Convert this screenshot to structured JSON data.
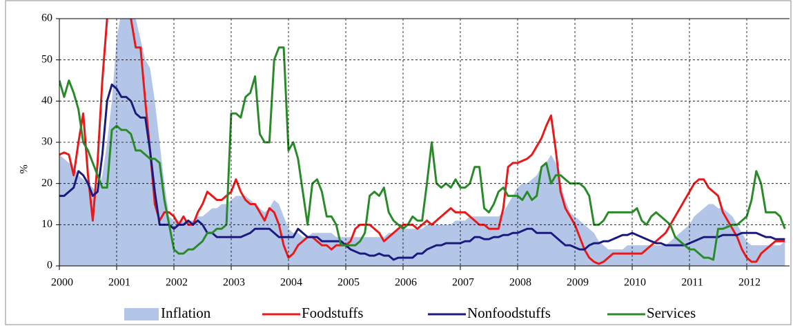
{
  "chart_data": {
    "type": "line",
    "ylabel": "%",
    "ylim": [
      0,
      60
    ],
    "yticks": [
      0,
      10,
      20,
      30,
      40,
      50,
      60
    ],
    "grid": true,
    "legend": "bottom",
    "categories": [
      "2000",
      null,
      null,
      null,
      null,
      null,
      null,
      null,
      null,
      null,
      null,
      null,
      "2001",
      null,
      null,
      null,
      null,
      null,
      null,
      null,
      null,
      null,
      null,
      null,
      "2002",
      null,
      null,
      null,
      null,
      null,
      null,
      null,
      null,
      null,
      null,
      null,
      "2003",
      null,
      null,
      null,
      null,
      null,
      null,
      null,
      null,
      null,
      null,
      null,
      "2004",
      null,
      null,
      null,
      null,
      null,
      null,
      null,
      null,
      null,
      null,
      null,
      "2005",
      null,
      null,
      null,
      null,
      null,
      null,
      null,
      null,
      null,
      null,
      null,
      "2006",
      null,
      null,
      null,
      null,
      null,
      null,
      null,
      null,
      null,
      null,
      null,
      "2007",
      null,
      null,
      null,
      null,
      null,
      null,
      null,
      null,
      null,
      null,
      null,
      "2008",
      null,
      null,
      null,
      null,
      null,
      null,
      null,
      null,
      null,
      null,
      null,
      "2009",
      null,
      null,
      null,
      null,
      null,
      null,
      null,
      null,
      null,
      null,
      null,
      "2010",
      null,
      null,
      null,
      null,
      null,
      null,
      null,
      null,
      null,
      null,
      null,
      "2011",
      null,
      null,
      null,
      null,
      null,
      null,
      null,
      null,
      null,
      null,
      null,
      "2012",
      null,
      null,
      null,
      null,
      null,
      null,
      null,
      null
    ],
    "series": [
      {
        "name": "Inflation",
        "type": "area",
        "color": "#b4c6e7",
        "values": [
          27,
          26,
          25,
          24,
          22,
          21,
          20,
          19,
          18,
          22,
          30,
          40,
          55,
          62,
          65,
          64,
          60,
          55,
          50,
          48,
          40,
          30,
          20,
          12,
          11,
          11,
          11,
          11,
          11,
          12,
          12,
          13,
          14,
          14,
          15,
          15,
          16,
          17,
          17,
          17,
          16,
          15,
          14,
          13,
          14,
          16,
          15,
          12,
          9,
          8,
          8,
          7,
          7,
          8,
          8,
          8,
          8,
          8,
          7,
          7,
          7,
          7,
          7,
          7,
          7,
          7,
          7,
          7,
          7,
          8,
          8,
          9,
          9,
          9,
          9,
          9,
          9,
          10,
          10,
          10,
          10,
          10,
          10,
          11,
          11,
          11,
          12,
          12,
          12,
          12,
          12,
          12,
          12,
          13,
          15,
          17,
          19,
          20,
          20,
          21,
          22,
          24,
          25,
          27,
          25,
          20,
          16,
          13,
          12,
          11,
          10,
          9,
          8,
          6,
          5,
          4,
          4,
          4,
          4,
          5,
          5,
          5,
          5,
          5,
          5,
          5,
          5,
          5,
          6,
          7,
          8,
          9,
          10,
          12,
          13,
          14,
          15,
          15,
          14,
          14,
          13,
          12,
          10,
          8,
          6,
          5,
          5,
          5,
          5,
          5,
          5,
          5,
          6
        ]
      },
      {
        "name": "Foodstuffs",
        "type": "line",
        "color": "#e8191a",
        "values": [
          27,
          27.5,
          27,
          22,
          30,
          37,
          22,
          11,
          25,
          45,
          60,
          65,
          66,
          66,
          64,
          60,
          53,
          53,
          40,
          28,
          15,
          11,
          13,
          13,
          12,
          10,
          12,
          10,
          10,
          13,
          15,
          18,
          17,
          16,
          16,
          17,
          18,
          21,
          18,
          16,
          15,
          15,
          13,
          11,
          14,
          13,
          10,
          5,
          2,
          3,
          5,
          6,
          7,
          7,
          6,
          5,
          5,
          4,
          5,
          5,
          5,
          6,
          9,
          10,
          10,
          10,
          9,
          8,
          6,
          7,
          8,
          9,
          10,
          10,
          10,
          9,
          10,
          11,
          10,
          11,
          12,
          13,
          14,
          13,
          13,
          13,
          12,
          11,
          10,
          10,
          9,
          9,
          9,
          14,
          24,
          25,
          25,
          25.5,
          26,
          27,
          29,
          31,
          34,
          36.5,
          28,
          18,
          14,
          12,
          10,
          7,
          4,
          2,
          1,
          0.5,
          1,
          2,
          3,
          3,
          3,
          3,
          3,
          3,
          3,
          4,
          5,
          6,
          7,
          8,
          10,
          12,
          14,
          16,
          18,
          20,
          21,
          21,
          19,
          18,
          17,
          13,
          11,
          9,
          7,
          4,
          2,
          1,
          1,
          3,
          4,
          5,
          6,
          6,
          6
        ]
      },
      {
        "name": "Nonfoodstuffs",
        "type": "line",
        "color": "#1a1a7f",
        "values": [
          17,
          17,
          18,
          19,
          23,
          22,
          20,
          17,
          18,
          27,
          40,
          44,
          43,
          41,
          41,
          40,
          37,
          36,
          36,
          28,
          18,
          10,
          10,
          10,
          9,
          10,
          10,
          11,
          10,
          11,
          10,
          8,
          8,
          7,
          7,
          7,
          7,
          7,
          7,
          7.5,
          8,
          9,
          9,
          9,
          9,
          8,
          7,
          7,
          7,
          7,
          9,
          8,
          7,
          7,
          7,
          6,
          6,
          6,
          6,
          6,
          5,
          4,
          3.5,
          3,
          3,
          2.5,
          2.5,
          3,
          2.5,
          2.5,
          1.5,
          2,
          2,
          2,
          2,
          3,
          3,
          4,
          4.5,
          5,
          5,
          5.5,
          5.5,
          5.5,
          5.5,
          6,
          6,
          7,
          7,
          6.5,
          6.5,
          7,
          7,
          7.5,
          7.5,
          8,
          8,
          8.5,
          9,
          9,
          8,
          8,
          8,
          8,
          7,
          6,
          5,
          5,
          4.5,
          4,
          4,
          5,
          5.5,
          5.5,
          6,
          6,
          6.5,
          7,
          7.5,
          7.5,
          8,
          7.5,
          7,
          6.5,
          6,
          5.5,
          5.5,
          5,
          5,
          5,
          5,
          5,
          5.5,
          6,
          6.5,
          7,
          7,
          7,
          7,
          7.5,
          7.5,
          7.5,
          7.5,
          8,
          8,
          8,
          8,
          7.5,
          7,
          7,
          6.5,
          6.5,
          6.5
        ]
      },
      {
        "name": "Services",
        "type": "line",
        "color": "#2a8a2a",
        "values": [
          45,
          41,
          45,
          42,
          38,
          30,
          28,
          25,
          22,
          19,
          19,
          33,
          34,
          33,
          33,
          32,
          28,
          28,
          27,
          26,
          26,
          25,
          16,
          10,
          4,
          3,
          3,
          4,
          4,
          5,
          6,
          8,
          8,
          9,
          9,
          10,
          37,
          37,
          36,
          41,
          42,
          46,
          32,
          30,
          30,
          50,
          53,
          53,
          28,
          30,
          26,
          18,
          10,
          20,
          21,
          18,
          12,
          12,
          10,
          5,
          5,
          5,
          5,
          6,
          8,
          17,
          18,
          17,
          19,
          13,
          11,
          10,
          9,
          10,
          12,
          11,
          11,
          20,
          30,
          20,
          19,
          20,
          19,
          21,
          19,
          19,
          20,
          24,
          24,
          14,
          13,
          15,
          18,
          19,
          17,
          17,
          17,
          16,
          18,
          16,
          17,
          24,
          25,
          20,
          22,
          22,
          21,
          20,
          20,
          20,
          19,
          17,
          10,
          10,
          11,
          13,
          13,
          13,
          13,
          13,
          13,
          14,
          11,
          10,
          12,
          13,
          12,
          11,
          10,
          7,
          6,
          5,
          4,
          4,
          3,
          2,
          2,
          1.5,
          9,
          9,
          9.5,
          10,
          10,
          11,
          12,
          16,
          23,
          20,
          13,
          13,
          13,
          12,
          9
        ]
      }
    ]
  }
}
